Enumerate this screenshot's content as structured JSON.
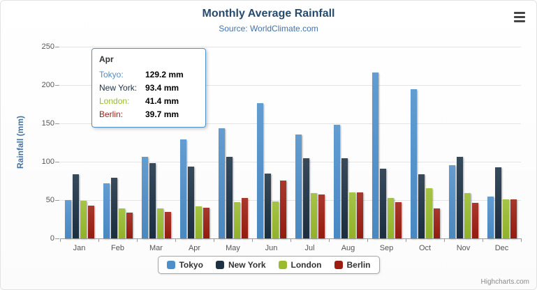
{
  "chart": {
    "title": "Monthly Average Rainfall",
    "subtitle": "Source: WorldClimate.com",
    "yaxis_title": "Rainfall (mm)",
    "credits": "Highcharts.com"
  },
  "chart_data": {
    "type": "bar",
    "title": "Monthly Average Rainfall",
    "subtitle": "Source: WorldClimate.com",
    "xlabel": "",
    "ylabel": "Rainfall (mm)",
    "ylim": [
      0,
      250
    ],
    "yticks": [
      0,
      50,
      100,
      150,
      200,
      250
    ],
    "grid": true,
    "legend_position": "bottom",
    "categories": [
      "Jan",
      "Feb",
      "Mar",
      "Apr",
      "May",
      "Jun",
      "Jul",
      "Aug",
      "Sep",
      "Oct",
      "Nov",
      "Dec"
    ],
    "series": [
      {
        "name": "Tokyo",
        "color": "#4D8FCB",
        "values": [
          49.9,
          71.5,
          106.4,
          129.2,
          144.0,
          176.0,
          135.6,
          148.5,
          216.4,
          194.1,
          95.6,
          54.4
        ]
      },
      {
        "name": "New York",
        "color": "#1C3144",
        "values": [
          83.6,
          78.8,
          98.5,
          93.4,
          106.0,
          84.5,
          105.0,
          104.3,
          91.2,
          83.5,
          106.6,
          92.3
        ]
      },
      {
        "name": "London",
        "color": "#99BB2D",
        "values": [
          48.9,
          38.8,
          39.3,
          41.4,
          47.0,
          48.3,
          59.0,
          59.6,
          52.4,
          65.2,
          59.3,
          51.2
        ]
      },
      {
        "name": "Berlin",
        "color": "#9C1D10",
        "values": [
          42.4,
          33.2,
          34.5,
          39.7,
          52.6,
          75.5,
          57.4,
          60.4,
          47.6,
          39.1,
          46.8,
          51.1
        ]
      }
    ]
  },
  "tooltip": {
    "header": "Apr",
    "border_color": "#4D8FCB",
    "rows": [
      {
        "name": "Tokyo:",
        "value": "129.2 mm",
        "color": "#4D8FCB"
      },
      {
        "name": "New York:",
        "value": "93.4 mm",
        "color": "#1C3144"
      },
      {
        "name": "London:",
        "value": "41.4 mm",
        "color": "#99BB2D"
      },
      {
        "name": "Berlin:",
        "value": "39.7 mm",
        "color": "#9C1D10"
      }
    ]
  },
  "legend": {
    "items": [
      {
        "label": "Tokyo",
        "color": "#4D8FCB"
      },
      {
        "label": "New York",
        "color": "#1C3144"
      },
      {
        "label": "London",
        "color": "#99BB2D"
      },
      {
        "label": "Berlin",
        "color": "#9C1D10"
      }
    ]
  }
}
